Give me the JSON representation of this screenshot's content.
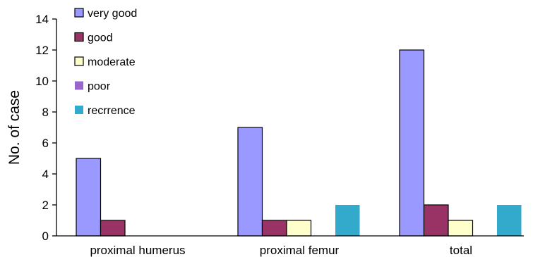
{
  "chart_data": {
    "type": "bar",
    "ylabel": "No. of case",
    "xlabel": "",
    "ylim": [
      0,
      14
    ],
    "yticks": [
      0,
      2,
      4,
      6,
      8,
      10,
      12,
      14
    ],
    "grid": false,
    "legend_position": "top-left",
    "categories": [
      "proximal humerus",
      "proximal femur",
      "total"
    ],
    "series": [
      {
        "name": "very good",
        "values": [
          5,
          7,
          12
        ],
        "color": "#9999ff",
        "outlined": true
      },
      {
        "name": "good",
        "values": [
          1,
          1,
          2
        ],
        "color": "#993366",
        "outlined": true
      },
      {
        "name": "moderate",
        "values": [
          0,
          1,
          1
        ],
        "color": "#ffffcc",
        "outlined": true
      },
      {
        "name": "poor",
        "values": [
          0,
          0,
          0
        ],
        "color": "#9966cc",
        "outlined": false
      },
      {
        "name": "recrrence",
        "values": [
          0,
          2,
          2
        ],
        "color": "#33aacc",
        "outlined": false
      }
    ]
  }
}
